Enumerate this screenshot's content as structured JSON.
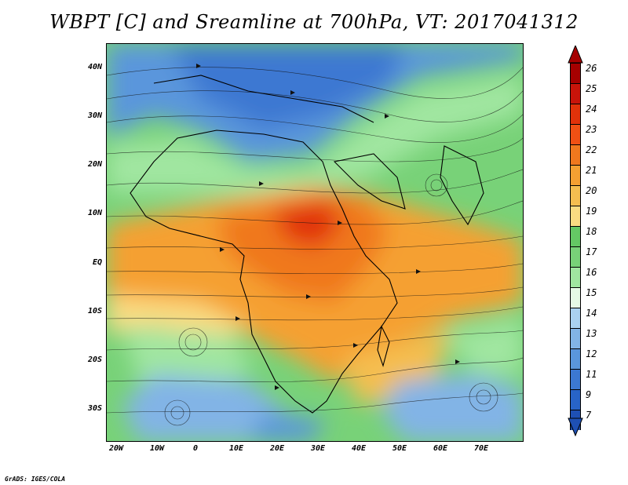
{
  "title": "WBPT [C] and Sreamline at 700hPa, VT: 2017041312",
  "credit": "GrADS: IGES/COLA",
  "lat_ticks": [
    "40N",
    "30N",
    "20N",
    "10N",
    "EQ",
    "10S",
    "20S",
    "30S"
  ],
  "lon_ticks": [
    "20W",
    "10W",
    "0",
    "10E",
    "20E",
    "30E",
    "40E",
    "50E",
    "60E",
    "70E"
  ],
  "colorbar": {
    "labels": [
      "26",
      "25",
      "24",
      "23",
      "22",
      "21",
      "20",
      "19",
      "18",
      "17",
      "16",
      "15",
      "14",
      "13",
      "12",
      "11",
      "9",
      "7"
    ],
    "colors": [
      "#a50000",
      "#c8140a",
      "#e1320a",
      "#f05014",
      "#f0781e",
      "#f5a032",
      "#f5be50",
      "#fadc82",
      "#64c864",
      "#78d278",
      "#a0e6a0",
      "#e6fae6",
      "#aad2f0",
      "#82b4e6",
      "#5a96dc",
      "#3c78d2",
      "#2864c8",
      "#1e50b4"
    ]
  },
  "map": {
    "region": "Africa and Indian Ocean",
    "lon_range": [
      -22,
      80
    ],
    "lat_range": [
      -35,
      45
    ],
    "field": "Wet-bulb potential temperature at 700hPa",
    "units": "C"
  }
}
